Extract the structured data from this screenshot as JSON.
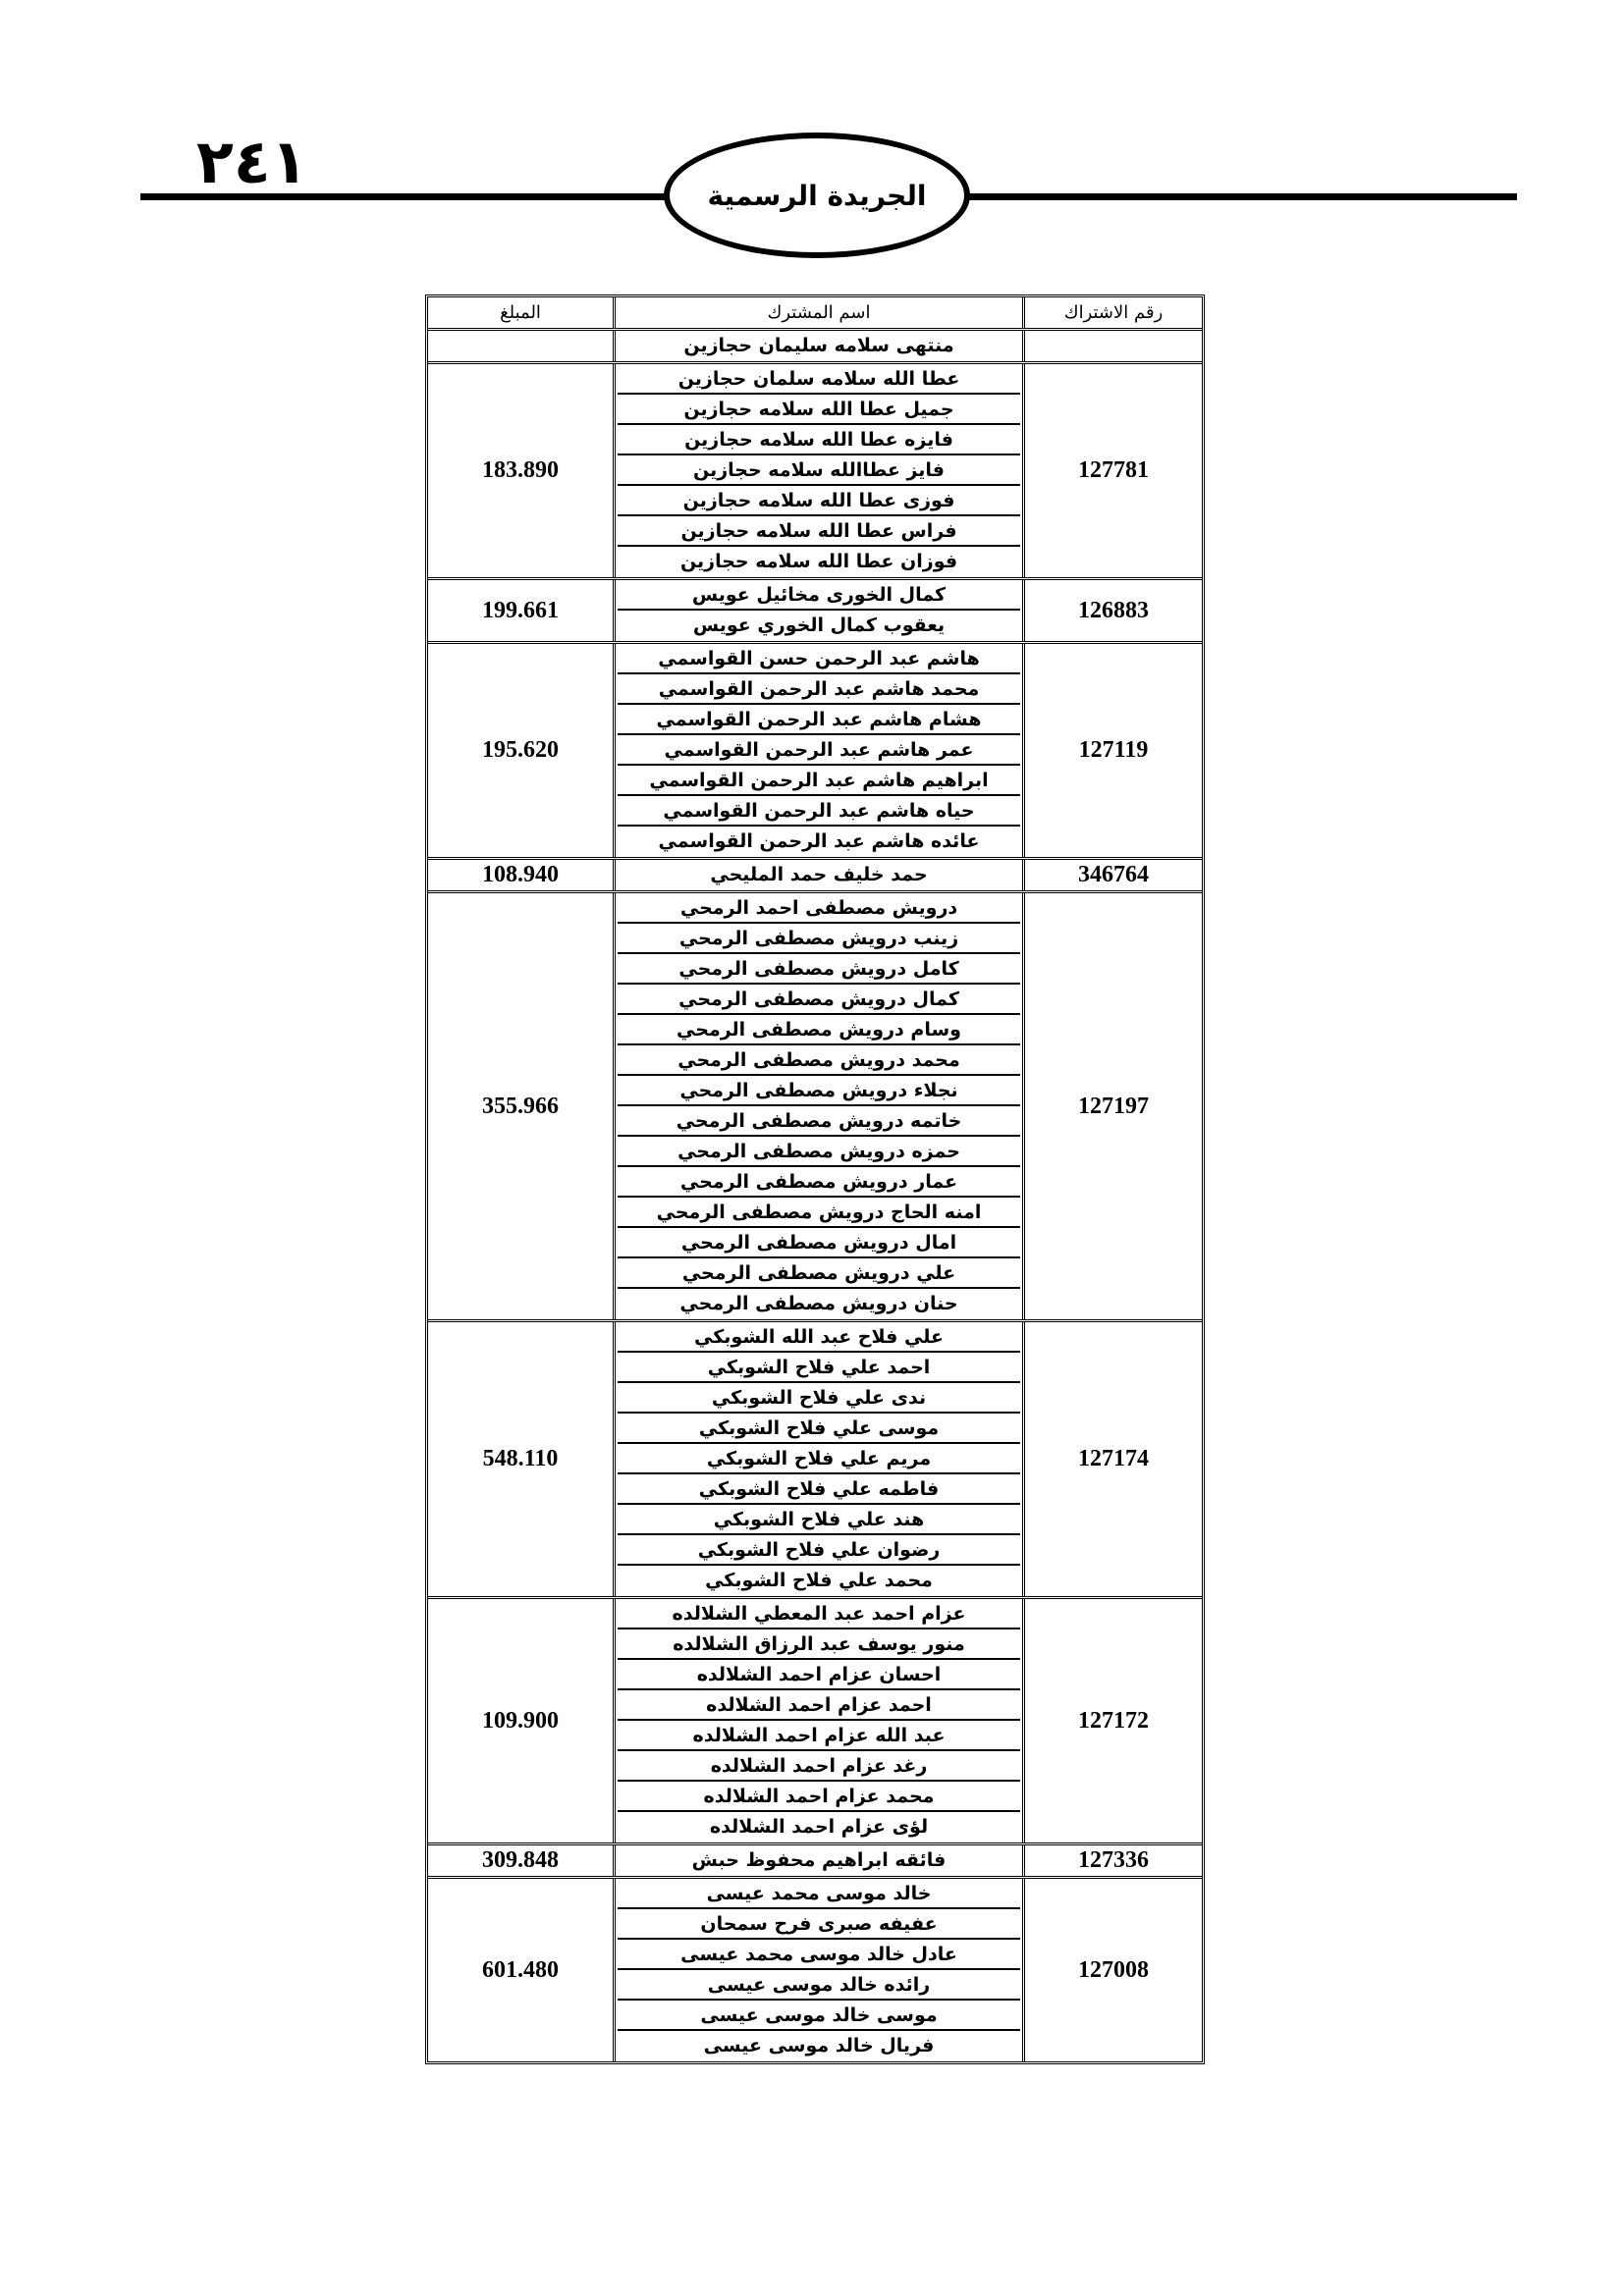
{
  "header": {
    "page_number": "٢٤١",
    "title": "الجريدة الرسمية"
  },
  "table": {
    "columns": {
      "number": "رقم الاشتراك",
      "name": "اسم المشترك",
      "amount": "المبلغ"
    },
    "groups": [
      {
        "number": "",
        "amount": "",
        "names": [
          "منتهى سلامه سليمان حجازين"
        ]
      },
      {
        "number": "127781",
        "amount": "183.890",
        "names": [
          "عطا الله سلامه سلمان حجازين",
          "جميل عطا الله سلامه حجازين",
          "فايزه عطا الله سلامه حجازين",
          "فايز عطاالله سلامه حجازين",
          "فوزى عطا الله سلامه حجازين",
          "فراس عطا الله سلامه حجازين",
          "فوزان عطا الله سلامه حجازين"
        ]
      },
      {
        "number": "126883",
        "amount": "199.661",
        "names": [
          "كمال الخورى مخائيل عويس",
          "يعقوب كمال الخوري عويس"
        ]
      },
      {
        "number": "127119",
        "amount": "195.620",
        "names": [
          "هاشم عبد الرحمن حسن القواسمي",
          "محمد هاشم عبد الرحمن القواسمي",
          "هشام هاشم عبد الرحمن القواسمي",
          "عمر هاشم عبد الرحمن القواسمي",
          "ابراهيم هاشم عبد الرحمن القواسمي",
          "حياه هاشم عبد الرحمن القواسمي",
          "عائده هاشم عبد الرحمن القواسمي"
        ]
      },
      {
        "number": "346764",
        "amount": "108.940",
        "names": [
          "حمد خليف حمد المليحي"
        ]
      },
      {
        "number": "127197",
        "amount": "355.966",
        "names": [
          "درويش مصطفى احمد الرمحي",
          "زينب درويش مصطفى الرمحي",
          "كامل درويش مصطفى الرمحي",
          "كمال درويش مصطفى الرمحي",
          "وسام درويش مصطفى الرمحي",
          "محمد درويش مصطفى الرمحي",
          "نجلاء درويش مصطفى الرمحي",
          "خاتمه درويش مصطفى الرمحي",
          "حمزه درويش مصطفى الرمحي",
          "عمار درويش مصطفى الرمحي",
          "امنه الحاج درويش مصطفى الرمحي",
          "امال درويش مصطفى الرمحي",
          "علي درويش مصطفى الرمحي",
          "حنان درويش مصطفى الرمحي"
        ]
      },
      {
        "number": "127174",
        "amount": "548.110",
        "names": [
          "علي فلاح عبد الله الشوبكي",
          "احمد علي فلاح الشوبكي",
          "ندى علي فلاح الشوبكي",
          "موسى علي فلاح الشوبكي",
          "مريم علي فلاح الشوبكي",
          "فاطمه علي فلاح الشوبكي",
          "هند علي فلاح الشوبكي",
          "رضوان علي فلاح الشوبكي",
          "محمد علي فلاح الشوبكي"
        ]
      },
      {
        "number": "127172",
        "amount": "109.900",
        "names": [
          "عزام احمد عبد المعطي الشلالده",
          "منور يوسف عبد الرزاق الشلالده",
          "احسان عزام احمد الشلالده",
          "احمد عزام احمد الشلالده",
          "عبد الله عزام احمد الشلالده",
          "رغد عزام احمد الشلالده",
          "محمد عزام احمد الشلالده",
          "لؤى عزام احمد الشلالده"
        ]
      },
      {
        "number": "127336",
        "amount": "309.848",
        "names": [
          "فائقه ابراهيم محفوظ حبش"
        ]
      },
      {
        "number": "127008",
        "amount": "601.480",
        "names": [
          "خالد موسى محمد عيسى",
          "عفيفه صبرى فرح سمحان",
          "عادل خالد موسى محمد عيسى",
          "رائده خالد موسى عيسى",
          "موسى خالد موسى عيسى",
          "فريال خالد موسى عيسى"
        ]
      }
    ]
  }
}
